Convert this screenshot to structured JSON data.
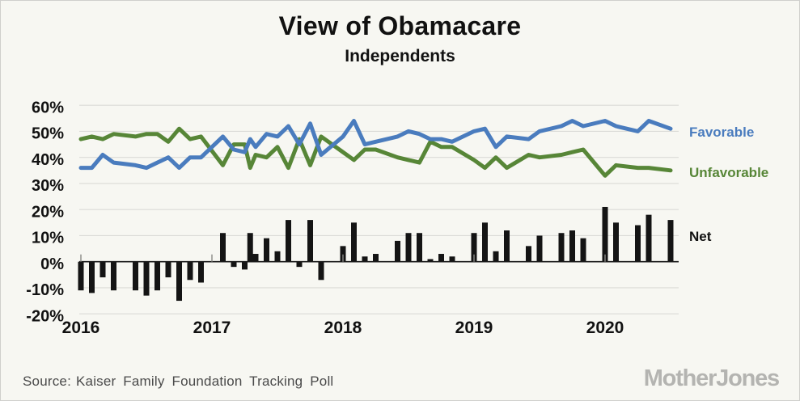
{
  "title": "View of Obamacare",
  "subtitle": "Independents",
  "series_labels": {
    "favorable": "Favorable",
    "unfavorable": "Unfavorable",
    "net": "Net"
  },
  "source": {
    "label": "Source:",
    "text": "Kaiser Family Foundation Tracking Poll"
  },
  "logo": {
    "text": "MotherJones"
  },
  "colors": {
    "favorable": "#4a7cbe",
    "unfavorable": "#578637",
    "net": "#141414",
    "gridline": "#dbdbd7",
    "axis": "#1a1a1a",
    "background": "#f7f7f2"
  },
  "chart_data": {
    "type": "line+bar",
    "title": "View of Obamacare",
    "subtitle": "Independents",
    "ylim": [
      -20,
      60
    ],
    "yticks": [
      60,
      50,
      40,
      30,
      20,
      10,
      0,
      -10,
      -20
    ],
    "ytick_format": "percent",
    "grid": true,
    "legend_position": "right",
    "x_year_ticks": [
      2016,
      2017,
      2018,
      2019,
      2020
    ],
    "series": [
      {
        "name": "Favorable",
        "type": "line",
        "color": "#4a7cbe"
      },
      {
        "name": "Unfavorable",
        "type": "line",
        "color": "#578637"
      },
      {
        "name": "Net",
        "type": "bar",
        "color": "#141414"
      }
    ],
    "points": [
      {
        "date": "Jan 2016",
        "m": 0,
        "favorable": 36,
        "unfavorable": 47,
        "net": -11
      },
      {
        "date": "Feb 2016",
        "m": 1,
        "favorable": 36,
        "unfavorable": 48,
        "net": -12
      },
      {
        "date": "Mar 2016",
        "m": 2,
        "favorable": 41,
        "unfavorable": 47,
        "net": -6
      },
      {
        "date": "Apr 2016",
        "m": 3,
        "favorable": 38,
        "unfavorable": 49,
        "net": -11
      },
      {
        "date": "Jun 2016",
        "m": 5,
        "favorable": 37,
        "unfavorable": 48,
        "net": -11
      },
      {
        "date": "Jul 2016",
        "m": 6,
        "favorable": 36,
        "unfavorable": 49,
        "net": -13
      },
      {
        "date": "Aug 2016",
        "m": 7,
        "favorable": 38,
        "unfavorable": 49,
        "net": -11
      },
      {
        "date": "Sep 2016",
        "m": 8,
        "favorable": 40,
        "unfavorable": 46,
        "net": -6
      },
      {
        "date": "Oct 2016",
        "m": 9,
        "favorable": 36,
        "unfavorable": 51,
        "net": -15
      },
      {
        "date": "Nov 2016",
        "m": 10,
        "favorable": 40,
        "unfavorable": 47,
        "net": -7
      },
      {
        "date": "Dec 2016",
        "m": 11,
        "favorable": 40,
        "unfavorable": 48,
        "net": -8
      },
      {
        "date": "Feb 2017",
        "m": 13,
        "favorable": 48,
        "unfavorable": 37,
        "net": 11
      },
      {
        "date": "Mar 2017",
        "m": 14,
        "favorable": 43,
        "unfavorable": 45,
        "net": -2
      },
      {
        "date": "Apr 2017",
        "m": 15,
        "favorable": 42,
        "unfavorable": 45,
        "net": -3
      },
      {
        "date": "Late Apr 2017",
        "m": 15.5,
        "favorable": 47,
        "unfavorable": 36,
        "net": 11
      },
      {
        "date": "May 2017",
        "m": 16,
        "favorable": 44,
        "unfavorable": 41,
        "net": 3
      },
      {
        "date": "Jun 2017",
        "m": 17,
        "favorable": 49,
        "unfavorable": 40,
        "net": 9
      },
      {
        "date": "Jul 2017",
        "m": 18,
        "favorable": 48,
        "unfavorable": 44,
        "net": 4
      },
      {
        "date": "Aug 2017",
        "m": 19,
        "favorable": 52,
        "unfavorable": 36,
        "net": 16
      },
      {
        "date": "Sep 2017",
        "m": 20,
        "favorable": 45,
        "unfavorable": 47,
        "net": -2
      },
      {
        "date": "Oct 2017",
        "m": 21,
        "favorable": 53,
        "unfavorable": 37,
        "net": 16
      },
      {
        "date": "Nov 2017",
        "m": 22,
        "favorable": 41,
        "unfavorable": 48,
        "net": -7
      },
      {
        "date": "Jan 2018",
        "m": 24,
        "favorable": 48,
        "unfavorable": 42,
        "net": 6
      },
      {
        "date": "Feb 2018",
        "m": 25,
        "favorable": 54,
        "unfavorable": 39,
        "net": 15
      },
      {
        "date": "Mar 2018",
        "m": 26,
        "favorable": 45,
        "unfavorable": 43,
        "net": 2
      },
      {
        "date": "Apr 2018",
        "m": 27,
        "favorable": 46,
        "unfavorable": 43,
        "net": 3
      },
      {
        "date": "Jun 2018",
        "m": 29,
        "favorable": 48,
        "unfavorable": 40,
        "net": 8
      },
      {
        "date": "Jul 2018",
        "m": 30,
        "favorable": 50,
        "unfavorable": 39,
        "net": 11
      },
      {
        "date": "Aug 2018",
        "m": 31,
        "favorable": 49,
        "unfavorable": 38,
        "net": 11
      },
      {
        "date": "Sep 2018",
        "m": 32,
        "favorable": 47,
        "unfavorable": 46,
        "net": 1
      },
      {
        "date": "Oct 2018",
        "m": 33,
        "favorable": 47,
        "unfavorable": 44,
        "net": 3
      },
      {
        "date": "Nov 2018",
        "m": 34,
        "favorable": 46,
        "unfavorable": 44,
        "net": 2
      },
      {
        "date": "Jan 2019",
        "m": 36,
        "favorable": 50,
        "unfavorable": 39,
        "net": 11
      },
      {
        "date": "Feb 2019",
        "m": 37,
        "favorable": 51,
        "unfavorable": 36,
        "net": 15
      },
      {
        "date": "Mar 2019",
        "m": 38,
        "favorable": 44,
        "unfavorable": 40,
        "net": 4
      },
      {
        "date": "Apr 2019",
        "m": 39,
        "favorable": 48,
        "unfavorable": 36,
        "net": 12
      },
      {
        "date": "Jun 2019",
        "m": 41,
        "favorable": 47,
        "unfavorable": 41,
        "net": 6
      },
      {
        "date": "Jul 2019",
        "m": 42,
        "favorable": 50,
        "unfavorable": 40,
        "net": 10
      },
      {
        "date": "Sep 2019",
        "m": 44,
        "favorable": 52,
        "unfavorable": 41,
        "net": 11
      },
      {
        "date": "Oct 2019",
        "m": 45,
        "favorable": 54,
        "unfavorable": 42,
        "net": 12
      },
      {
        "date": "Nov 2019",
        "m": 46,
        "favorable": 52,
        "unfavorable": 43,
        "net": 9
      },
      {
        "date": "Jan 2020",
        "m": 48,
        "favorable": 54,
        "unfavorable": 33,
        "net": 21
      },
      {
        "date": "Feb 2020",
        "m": 49,
        "favorable": 52,
        "unfavorable": 37,
        "net": 15
      },
      {
        "date": "Apr 2020",
        "m": 51,
        "favorable": 50,
        "unfavorable": 36,
        "net": 14
      },
      {
        "date": "May 2020",
        "m": 52,
        "favorable": 54,
        "unfavorable": 36,
        "net": 18
      },
      {
        "date": "Jul 2020",
        "m": 54,
        "favorable": 51,
        "unfavorable": 35,
        "net": 16
      }
    ]
  }
}
